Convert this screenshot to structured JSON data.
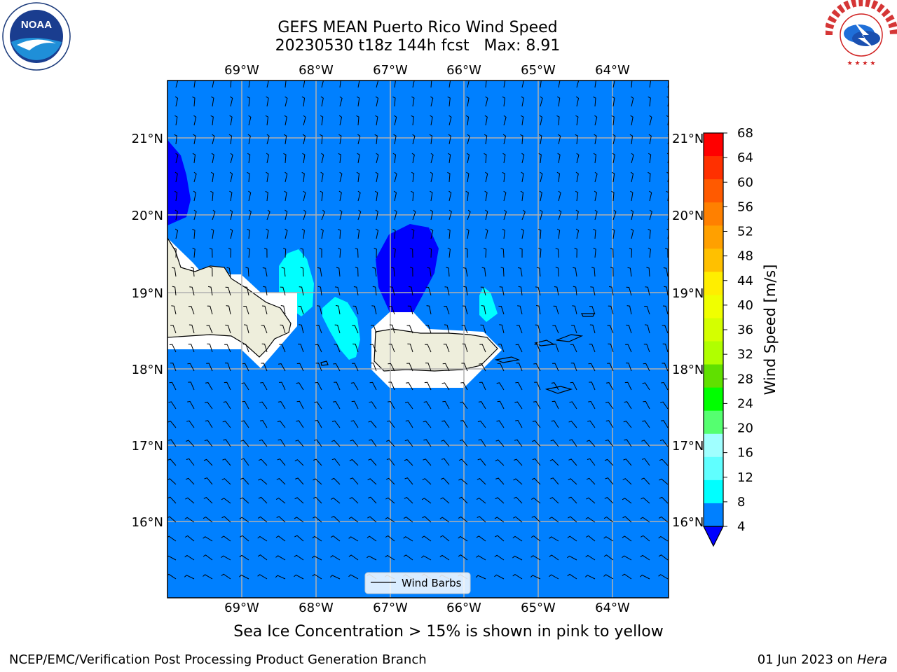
{
  "header": {
    "title_line1": "GEFS MEAN Puerto Rico Wind Speed",
    "title_line2": "20230530 t18z 144h fcst   Max: 8.91"
  },
  "map": {
    "lon_labels": [
      "69°W",
      "68°W",
      "67°W",
      "66°W",
      "65°W",
      "64°W"
    ],
    "lat_labels": [
      "21°N",
      "20°N",
      "19°N",
      "18°N",
      "17°N",
      "16°N"
    ],
    "colors": {
      "background_field": "#0080ff",
      "land": "#eeeedc",
      "low_speed": "#0000ff",
      "cyan": "#00ffff",
      "gridline": "#b0b0b0"
    },
    "legend_label": "Wind Barbs"
  },
  "colorbar": {
    "label": "Wind Speed [m/s]",
    "ticks": [
      "68",
      "64",
      "60",
      "56",
      "52",
      "48",
      "44",
      "40",
      "36",
      "32",
      "28",
      "24",
      "20",
      "16",
      "12",
      "8",
      "4"
    ],
    "colors": [
      "#ff0000",
      "#ff3000",
      "#ff5a00",
      "#ff8000",
      "#ffa000",
      "#ffc000",
      "#ffee00",
      "#f0ff00",
      "#d4ff00",
      "#b0ff00",
      "#60e000",
      "#00ff00",
      "#55ff70",
      "#a0ffff",
      "#60ffff",
      "#00ffff",
      "#0080ff"
    ],
    "under_color": "#0000ff"
  },
  "footer": {
    "note": "Sea Ice Concentration > 15% is shown in pink to yellow",
    "credit_left": "NCEP/EMC/Verification Post Processing Product Generation Branch",
    "credit_right_date": "01 Jun 2023 on ",
    "credit_right_host": "Hera"
  }
}
